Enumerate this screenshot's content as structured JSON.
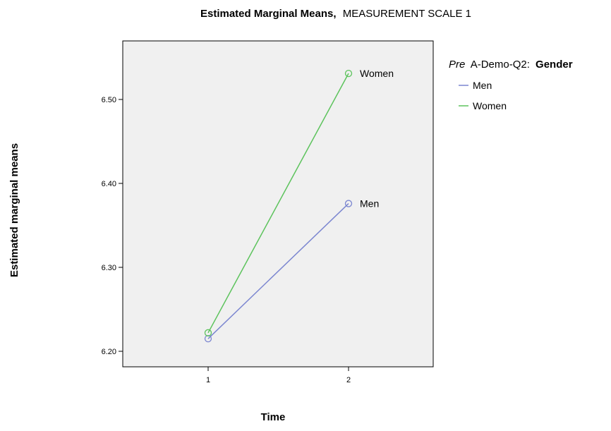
{
  "chart_data": {
    "type": "line",
    "title": "Estimated Marginal Means,",
    "subtitle": "MEASUREMENT SCALE 1",
    "xlabel": "Time",
    "ylabel": "Estimated marginal means",
    "categories": [
      "1",
      "2"
    ],
    "y_ticks": [
      "6.20",
      "6.30",
      "6.40",
      "6.50"
    ],
    "ylim": [
      6.18,
      6.565
    ],
    "grid": false,
    "legend": {
      "title_italic": "Pre",
      "title_plain": "A-Demo-Q2:",
      "title_bold": "Gender",
      "placement": "right"
    },
    "series": [
      {
        "name": "Men",
        "values": [
          6.215,
          6.376
        ],
        "color": "#7b86d0",
        "end_label": "Men"
      },
      {
        "name": "Women",
        "values": [
          6.222,
          6.531
        ],
        "color": "#5cc35c",
        "end_label": "Women"
      }
    ],
    "plot_background": "#f0f0f0"
  }
}
